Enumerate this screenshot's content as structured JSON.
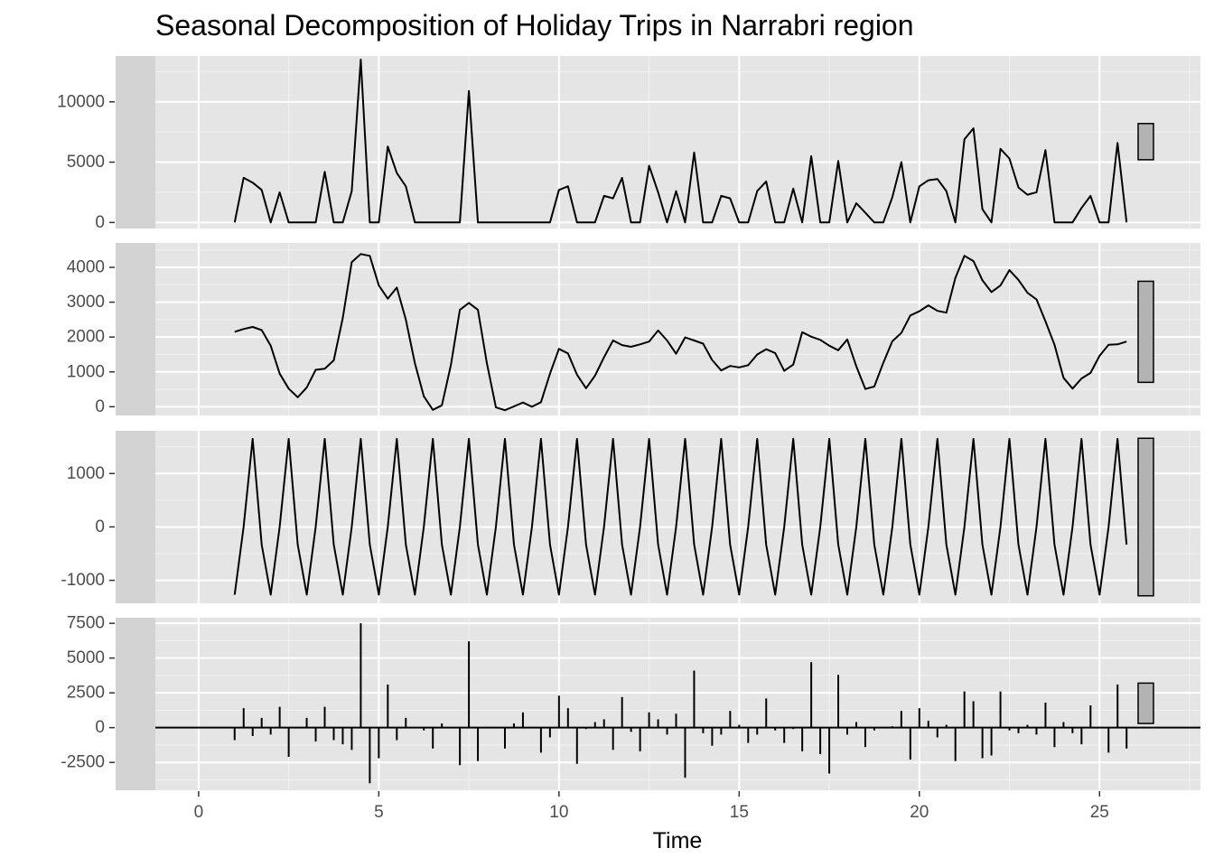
{
  "chart_data": {
    "type": "line",
    "title": "Seasonal Decomposition of Holiday Trips in Narrabri region",
    "xlabel": "Time",
    "xlim": [
      -1.2,
      27.8
    ],
    "x_ticks": [
      0,
      5,
      10,
      15,
      20,
      25
    ],
    "x_start": 1,
    "x_step": 0.25,
    "background": "#e5e5e5",
    "strip_color": "#d3d3d3",
    "line_color": "#000000",
    "bar_fill": "#b3b3b3",
    "panels": [
      {
        "name": "data",
        "style": "line",
        "ylim": [
          -500,
          13800
        ],
        "y_ticks": [
          0,
          5000,
          10000
        ],
        "scale_bar": [
          5200,
          8200
        ],
        "values": [
          0,
          3700,
          3300,
          2700,
          0,
          2500,
          0,
          0,
          0,
          0,
          4200,
          0,
          0,
          2600,
          13500,
          0,
          0,
          6300,
          4100,
          3000,
          0,
          0,
          0,
          0,
          0,
          0,
          10900,
          0,
          0,
          0,
          0,
          0,
          0,
          0,
          0,
          0,
          2700,
          3000,
          0,
          0,
          0,
          2200,
          2000,
          3700,
          0,
          0,
          4700,
          2500,
          0,
          2600,
          0,
          5800,
          0,
          0,
          2200,
          2000,
          0,
          0,
          2600,
          3400,
          0,
          0,
          2800,
          0,
          5500,
          0,
          0,
          5100,
          0,
          1600,
          800,
          0,
          0,
          2100,
          5000,
          0,
          3000,
          3500,
          3600,
          2600,
          0,
          6900,
          7800,
          1100,
          0,
          6100,
          5300,
          2900,
          2300,
          2500,
          6000,
          0,
          0,
          0,
          1200,
          2200,
          0,
          0,
          6600,
          0
        ]
      },
      {
        "name": "trend",
        "style": "line",
        "ylim": [
          -250,
          4700
        ],
        "y_ticks": [
          0,
          1000,
          2000,
          3000,
          4000
        ],
        "scale_bar": [
          700,
          3600
        ],
        "values": [
          2150,
          2230,
          2290,
          2200,
          1750,
          950,
          520,
          270,
          550,
          1060,
          1090,
          1330,
          2550,
          4150,
          4380,
          4330,
          3480,
          3100,
          3420,
          2500,
          1250,
          300,
          -90,
          40,
          1200,
          2780,
          2980,
          2780,
          1250,
          -20,
          -100,
          10,
          120,
          0,
          130,
          950,
          1660,
          1530,
          920,
          530,
          890,
          1420,
          1900,
          1770,
          1720,
          1790,
          1870,
          2190,
          1900,
          1520,
          1990,
          1900,
          1810,
          1340,
          1040,
          1170,
          1130,
          1190,
          1500,
          1650,
          1540,
          1030,
          1210,
          2140,
          2010,
          1920,
          1750,
          1620,
          1930,
          1160,
          510,
          580,
          1260,
          1880,
          2120,
          2620,
          2740,
          2910,
          2750,
          2700,
          3700,
          4330,
          4180,
          3630,
          3290,
          3480,
          3920,
          3640,
          3270,
          3080,
          2450,
          1780,
          830,
          520,
          810,
          970,
          1460,
          1780,
          1790,
          1870
        ]
      },
      {
        "name": "seasonal",
        "style": "line",
        "ylim": [
          -1430,
          1800
        ],
        "y_ticks": [
          -1000,
          0,
          1000
        ],
        "scale_bar": [
          -1290,
          1660
        ],
        "pattern": [
          -1270,
          0,
          1650,
          -330
        ]
      },
      {
        "name": "remainder",
        "style": "spike",
        "ylim": [
          -4500,
          7900
        ],
        "y_ticks": [
          -2500,
          0,
          2500,
          5000,
          7500
        ],
        "scale_bar": [
          300,
          3200
        ],
        "values": [
          -900,
          1400,
          -600,
          700,
          -500,
          1500,
          -2100,
          0,
          700,
          -1000,
          1500,
          -900,
          -1200,
          -1600,
          7500,
          -4000,
          -2200,
          3100,
          -900,
          700,
          0,
          -200,
          -1500,
          300,
          0,
          -2700,
          6200,
          -2400,
          0,
          0,
          -1500,
          300,
          1100,
          0,
          -1800,
          -700,
          2300,
          1400,
          -2600,
          -100,
          400,
          600,
          -1600,
          2200,
          -300,
          -1700,
          1100,
          600,
          -500,
          1000,
          -3600,
          4100,
          -400,
          -1300,
          -500,
          1200,
          200,
          -1100,
          -500,
          2100,
          -200,
          -1100,
          -100,
          -1700,
          4700,
          -1900,
          -3300,
          3800,
          -500,
          400,
          -1400,
          -200,
          0,
          100,
          1200,
          -2300,
          1400,
          500,
          -700,
          200,
          -2400,
          2600,
          1900,
          -2200,
          -2000,
          2600,
          -200,
          -400,
          200,
          -500,
          1800,
          -1400,
          400,
          -400,
          -1200,
          1600,
          0,
          -1800,
          3100,
          -1500
        ]
      }
    ]
  }
}
